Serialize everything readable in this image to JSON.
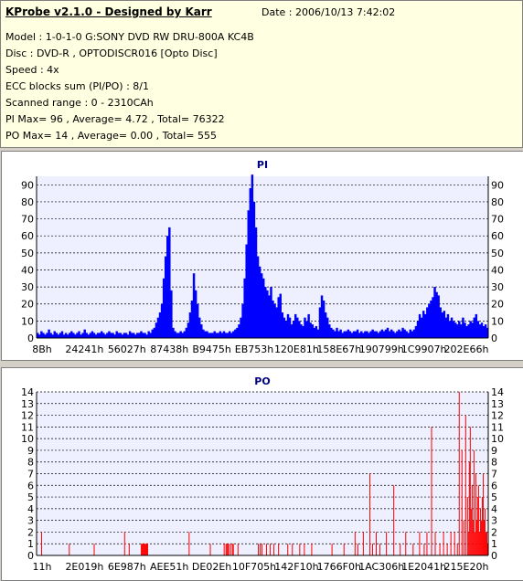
{
  "header": {
    "title": "KProbe v2.1.0 - Designed by Karr",
    "date": "Date : 2006/10/13 7:42:02",
    "lines": [
      "Model : 1-0-1-0 G:SONY     DVD RW DRU-800A  KC4B",
      "Disc : DVD-R , OPTODISCR016 [Opto Disc]",
      "Speed : 4x",
      "ECC blocks sum (PI/PO) : 8/1",
      "Scanned range : 0 - 2310CAh",
      "PI Max= 96 , Average= 4.72 , Total= 76322",
      "PO Max= 14 , Average= 0.00 , Total= 555"
    ]
  },
  "colors": {
    "background": "#d4d0c8",
    "info_bg": "#ffffe1",
    "plot_bg": "#eef0ff",
    "pi_color": "#0000ff",
    "po_color": "#ff0000",
    "title_color": "#000080"
  },
  "chart_data": [
    {
      "type": "area",
      "title": "PI",
      "ylim": [
        0,
        95
      ],
      "yticks": [
        0,
        10,
        20,
        30,
        40,
        50,
        60,
        70,
        80,
        90
      ],
      "xtick_labels": [
        "8Bh",
        "24241h",
        "56027h",
        "87438h",
        "B9475h",
        "EB753h",
        "120E81h",
        "158E67h",
        "190799h",
        "1C9907h",
        "202E66h"
      ],
      "grid": true,
      "series": [
        {
          "values": [
            3,
            2,
            4,
            3,
            2,
            3,
            5,
            3,
            2,
            4,
            3,
            2,
            3,
            4,
            2,
            3,
            2,
            3,
            4,
            3,
            2,
            3,
            4,
            2,
            3,
            5,
            3,
            2,
            3,
            4,
            3,
            2,
            3,
            3,
            4,
            3,
            2,
            3,
            4,
            3,
            3,
            2,
            4,
            3,
            3,
            2,
            3,
            3,
            2,
            4,
            3,
            3,
            2,
            3,
            3,
            4,
            3,
            3,
            2,
            4,
            3,
            5,
            6,
            9,
            12,
            15,
            20,
            35,
            48,
            60,
            65,
            28,
            6,
            4,
            3,
            3,
            4,
            3,
            4,
            6,
            9,
            15,
            22,
            38,
            28,
            20,
            12,
            8,
            5,
            4,
            4,
            3,
            3,
            3,
            4,
            3,
            3,
            4,
            3,
            4,
            3,
            3,
            4,
            3,
            4,
            5,
            6,
            8,
            12,
            20,
            35,
            55,
            75,
            88,
            96,
            80,
            65,
            48,
            42,
            38,
            35,
            30,
            28,
            25,
            30,
            22,
            20,
            18,
            24,
            26,
            15,
            12,
            10,
            14,
            12,
            8,
            10,
            14,
            12,
            10,
            8,
            7,
            12,
            10,
            14,
            9,
            8,
            6,
            7,
            5,
            18,
            25,
            22,
            15,
            12,
            8,
            6,
            5,
            4,
            6,
            4,
            5,
            3,
            4,
            4,
            5,
            4,
            3,
            4,
            4,
            5,
            3,
            4,
            3,
            4,
            4,
            3,
            4,
            5,
            4,
            4,
            3,
            4,
            5,
            4,
            5,
            6,
            4,
            5,
            4,
            3,
            4,
            5,
            4,
            6,
            5,
            4,
            3,
            5,
            4,
            5,
            7,
            10,
            14,
            12,
            16,
            14,
            18,
            20,
            22,
            24,
            30,
            27,
            25,
            18,
            15,
            16,
            12,
            14,
            10,
            12,
            10,
            9,
            8,
            10,
            8,
            12,
            9,
            7,
            8,
            10,
            9,
            12,
            14,
            10,
            8,
            9,
            7,
            8,
            6
          ]
        }
      ]
    },
    {
      "type": "bar",
      "title": "PO",
      "ylim": [
        0,
        14
      ],
      "yticks": [
        0,
        1,
        2,
        3,
        4,
        5,
        6,
        7,
        8,
        9,
        10,
        11,
        12,
        13,
        14
      ],
      "xtick_labels": [
        "11h",
        "2E019h",
        "6E987h",
        "AEE51h",
        "DE02Eh",
        "10F705h",
        "142F10h",
        "1766F0h",
        "1AC306h",
        "1E2041h",
        "215E20h"
      ],
      "grid": true,
      "series": [
        {
          "points": [
            [
              5,
              2
            ],
            [
              35,
              1
            ],
            [
              62,
              1
            ],
            [
              95,
              2
            ],
            [
              100,
              1
            ],
            [
              113,
              1
            ],
            [
              114,
              1
            ],
            [
              115,
              1
            ],
            [
              116,
              1
            ],
            [
              117,
              1
            ],
            [
              118,
              1
            ],
            [
              119,
              1
            ],
            [
              120,
              1
            ],
            [
              165,
              2
            ],
            [
              188,
              1
            ],
            [
              203,
              1
            ],
            [
              205,
              1
            ],
            [
              206,
              1
            ],
            [
              207,
              1
            ],
            [
              208,
              1
            ],
            [
              210,
              1
            ],
            [
              212,
              1
            ],
            [
              213,
              1
            ],
            [
              218,
              1
            ],
            [
              240,
              1
            ],
            [
              242,
              1
            ],
            [
              244,
              1
            ],
            [
              249,
              1
            ],
            [
              253,
              1
            ],
            [
              257,
              1
            ],
            [
              262,
              1
            ],
            [
              272,
              1
            ],
            [
              277,
              1
            ],
            [
              285,
              1
            ],
            [
              290,
              1
            ],
            [
              298,
              1
            ],
            [
              320,
              1
            ],
            [
              333,
              1
            ],
            [
              345,
              2
            ],
            [
              348,
              1
            ],
            [
              354,
              2
            ],
            [
              361,
              7
            ],
            [
              364,
              1
            ],
            [
              368,
              2
            ],
            [
              372,
              1
            ],
            [
              379,
              2
            ],
            [
              387,
              6
            ],
            [
              394,
              1
            ],
            [
              400,
              2
            ],
            [
              408,
              1
            ],
            [
              415,
              2
            ],
            [
              420,
              1
            ],
            [
              423,
              2
            ],
            [
              428,
              11
            ],
            [
              432,
              2
            ],
            [
              437,
              1
            ],
            [
              441,
              2
            ],
            [
              445,
              1
            ],
            [
              449,
              2
            ],
            [
              453,
              2
            ],
            [
              456,
              1
            ],
            [
              458,
              14
            ],
            [
              461,
              9
            ],
            [
              463,
              3
            ],
            [
              465,
              12
            ],
            [
              467,
              5
            ],
            [
              468,
              2
            ],
            [
              469,
              8
            ],
            [
              470,
              11
            ],
            [
              471,
              4
            ],
            [
              472,
              6
            ],
            [
              473,
              3
            ],
            [
              474,
              9
            ],
            [
              475,
              2
            ],
            [
              476,
              7
            ],
            [
              477,
              3
            ],
            [
              478,
              5
            ],
            [
              479,
              6
            ],
            [
              480,
              2
            ],
            [
              481,
              4
            ],
            [
              482,
              3
            ],
            [
              483,
              5
            ],
            [
              484,
              7
            ],
            [
              485,
              3
            ],
            [
              486,
              4
            ],
            [
              487,
              2
            ],
            [
              488,
              2
            ],
            [
              489,
              1
            ]
          ]
        }
      ]
    }
  ]
}
